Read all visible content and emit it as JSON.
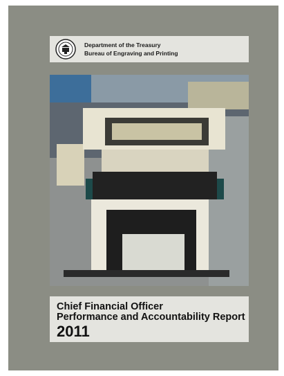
{
  "header": {
    "line1": "Department of the Treasury",
    "line2": "Bureau of Engraving and Printing"
  },
  "title": {
    "line1": "Chief Financial Officer",
    "line2": "Performance and Accountability Report",
    "year": "2011"
  }
}
